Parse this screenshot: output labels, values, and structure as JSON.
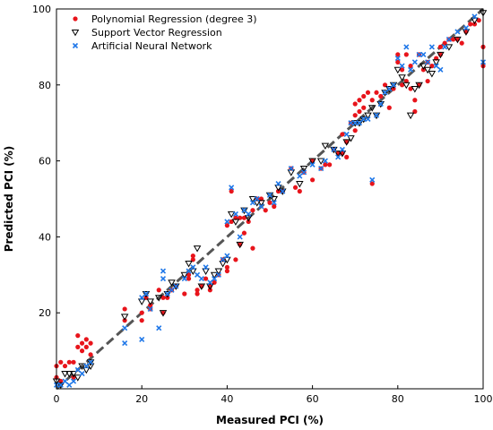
{
  "chart_data": {
    "type": "scatter",
    "title": "",
    "xlabel": "Measured PCI (%)",
    "ylabel": "Predicted PCI (%)",
    "xlim": [
      0,
      100
    ],
    "ylim": [
      0,
      100
    ],
    "xticks": [
      0,
      20,
      40,
      60,
      80,
      100
    ],
    "yticks": [
      20,
      40,
      60,
      80,
      100
    ],
    "grid": false,
    "legend_position": "top-left",
    "reference_line": {
      "style": "dashed",
      "color": "#555555",
      "from": [
        0,
        0
      ],
      "to": [
        100,
        100
      ]
    },
    "series": [
      {
        "name": "Polynomial Regression (degree 3)",
        "marker": "circle",
        "color": "#e8141b",
        "points": [
          [
            0,
            3
          ],
          [
            0,
            6
          ],
          [
            1,
            7
          ],
          [
            1,
            2
          ],
          [
            2,
            6
          ],
          [
            3,
            7
          ],
          [
            4,
            7
          ],
          [
            4,
            3
          ],
          [
            5,
            14
          ],
          [
            5,
            11
          ],
          [
            6,
            12
          ],
          [
            6,
            10
          ],
          [
            7,
            13
          ],
          [
            7,
            11
          ],
          [
            8,
            12
          ],
          [
            8,
            9
          ],
          [
            16,
            18
          ],
          [
            16,
            21
          ],
          [
            20,
            20
          ],
          [
            20,
            18
          ],
          [
            21,
            24
          ],
          [
            22,
            22
          ],
          [
            22,
            21
          ],
          [
            24,
            26
          ],
          [
            25,
            20
          ],
          [
            25,
            24
          ],
          [
            26,
            24
          ],
          [
            27,
            26
          ],
          [
            28,
            27
          ],
          [
            30,
            25
          ],
          [
            31,
            30
          ],
          [
            31,
            29
          ],
          [
            32,
            34
          ],
          [
            32,
            35
          ],
          [
            33,
            26
          ],
          [
            33,
            25
          ],
          [
            34,
            27
          ],
          [
            35,
            29
          ],
          [
            36,
            26
          ],
          [
            36,
            27
          ],
          [
            37,
            28
          ],
          [
            38,
            30
          ],
          [
            39,
            34
          ],
          [
            40,
            31
          ],
          [
            40,
            32
          ],
          [
            40,
            43
          ],
          [
            41,
            52
          ],
          [
            41,
            44
          ],
          [
            42,
            45
          ],
          [
            42,
            34
          ],
          [
            43,
            45
          ],
          [
            43,
            38
          ],
          [
            44,
            41
          ],
          [
            44,
            45
          ],
          [
            45,
            44
          ],
          [
            46,
            37
          ],
          [
            46,
            47
          ],
          [
            47,
            50
          ],
          [
            48,
            50
          ],
          [
            49,
            47
          ],
          [
            50,
            49
          ],
          [
            51,
            48
          ],
          [
            52,
            52
          ],
          [
            53,
            52
          ],
          [
            55,
            58
          ],
          [
            56,
            53
          ],
          [
            57,
            52
          ],
          [
            58,
            57
          ],
          [
            60,
            60
          ],
          [
            60,
            55
          ],
          [
            62,
            58
          ],
          [
            63,
            59
          ],
          [
            64,
            59
          ],
          [
            65,
            63
          ],
          [
            66,
            62
          ],
          [
            67,
            62
          ],
          [
            67,
            67
          ],
          [
            68,
            61
          ],
          [
            68,
            65
          ],
          [
            69,
            70
          ],
          [
            70,
            68
          ],
          [
            70,
            72
          ],
          [
            70,
            75
          ],
          [
            71,
            76
          ],
          [
            71,
            73
          ],
          [
            72,
            77
          ],
          [
            72,
            74
          ],
          [
            73,
            78
          ],
          [
            74,
            76
          ],
          [
            74,
            54
          ],
          [
            75,
            78
          ],
          [
            76,
            77
          ],
          [
            77,
            80
          ],
          [
            78,
            74
          ],
          [
            79,
            79
          ],
          [
            80,
            86
          ],
          [
            80,
            88
          ],
          [
            81,
            84
          ],
          [
            81,
            80
          ],
          [
            82,
            88
          ],
          [
            82,
            81
          ],
          [
            83,
            79
          ],
          [
            83,
            85
          ],
          [
            84,
            76
          ],
          [
            84,
            73
          ],
          [
            85,
            80
          ],
          [
            85,
            88
          ],
          [
            86,
            84
          ],
          [
            87,
            81
          ],
          [
            87,
            86
          ],
          [
            88,
            85
          ],
          [
            89,
            87
          ],
          [
            90,
            88
          ],
          [
            90,
            90
          ],
          [
            91,
            91
          ],
          [
            92,
            92
          ],
          [
            93,
            92
          ],
          [
            94,
            92
          ],
          [
            95,
            91
          ],
          [
            96,
            94
          ],
          [
            97,
            96
          ],
          [
            98,
            96
          ],
          [
            99,
            97
          ],
          [
            100,
            85
          ],
          [
            100,
            90
          ]
        ]
      },
      {
        "name": "Support Vector Regression",
        "marker": "triangle-down",
        "color": "#000000",
        "points": [
          [
            0,
            2
          ],
          [
            1,
            1
          ],
          [
            2,
            4
          ],
          [
            3,
            4
          ],
          [
            4,
            4
          ],
          [
            5,
            3
          ],
          [
            6,
            6
          ],
          [
            7,
            5
          ],
          [
            8,
            6
          ],
          [
            8,
            7
          ],
          [
            16,
            19
          ],
          [
            20,
            23
          ],
          [
            21,
            25
          ],
          [
            22,
            23
          ],
          [
            24,
            24
          ],
          [
            25,
            20
          ],
          [
            26,
            25
          ],
          [
            27,
            28
          ],
          [
            28,
            27
          ],
          [
            30,
            30
          ],
          [
            31,
            33
          ],
          [
            32,
            31
          ],
          [
            33,
            37
          ],
          [
            34,
            27
          ],
          [
            35,
            31
          ],
          [
            36,
            27
          ],
          [
            37,
            30
          ],
          [
            38,
            31
          ],
          [
            39,
            33
          ],
          [
            40,
            34
          ],
          [
            41,
            46
          ],
          [
            42,
            44
          ],
          [
            43,
            38
          ],
          [
            44,
            47
          ],
          [
            45,
            45
          ],
          [
            46,
            50
          ],
          [
            47,
            49
          ],
          [
            48,
            49
          ],
          [
            50,
            51
          ],
          [
            51,
            50
          ],
          [
            52,
            53
          ],
          [
            53,
            52
          ],
          [
            55,
            57
          ],
          [
            57,
            54
          ],
          [
            58,
            58
          ],
          [
            60,
            60
          ],
          [
            62,
            60
          ],
          [
            63,
            64
          ],
          [
            65,
            63
          ],
          [
            66,
            62
          ],
          [
            67,
            62
          ],
          [
            68,
            65
          ],
          [
            69,
            66
          ],
          [
            70,
            70
          ],
          [
            71,
            70
          ],
          [
            72,
            71
          ],
          [
            73,
            72
          ],
          [
            74,
            74
          ],
          [
            75,
            72
          ],
          [
            76,
            75
          ],
          [
            77,
            78
          ],
          [
            78,
            79
          ],
          [
            79,
            80
          ],
          [
            80,
            84
          ],
          [
            81,
            82
          ],
          [
            82,
            80
          ],
          [
            83,
            72
          ],
          [
            84,
            79
          ],
          [
            85,
            80
          ],
          [
            86,
            85
          ],
          [
            87,
            84
          ],
          [
            88,
            83
          ],
          [
            89,
            86
          ],
          [
            90,
            88
          ],
          [
            92,
            90
          ],
          [
            94,
            92
          ],
          [
            96,
            94
          ],
          [
            98,
            97
          ],
          [
            100,
            99
          ]
        ]
      },
      {
        "name": "Artificial Neural Network",
        "marker": "x",
        "color": "#1f77e8",
        "points": [
          [
            0,
            1
          ],
          [
            1,
            1
          ],
          [
            2,
            2
          ],
          [
            3,
            1
          ],
          [
            4,
            2
          ],
          [
            5,
            5
          ],
          [
            6,
            4
          ],
          [
            7,
            6
          ],
          [
            8,
            7
          ],
          [
            16,
            12
          ],
          [
            16,
            16
          ],
          [
            20,
            13
          ],
          [
            20,
            24
          ],
          [
            21,
            25
          ],
          [
            22,
            21
          ],
          [
            24,
            16
          ],
          [
            25,
            29
          ],
          [
            25,
            31
          ],
          [
            26,
            25
          ],
          [
            27,
            26
          ],
          [
            28,
            27
          ],
          [
            30,
            29
          ],
          [
            31,
            31
          ],
          [
            32,
            32
          ],
          [
            33,
            30
          ],
          [
            34,
            29
          ],
          [
            35,
            32
          ],
          [
            36,
            28
          ],
          [
            37,
            29
          ],
          [
            38,
            30
          ],
          [
            39,
            34
          ],
          [
            40,
            35
          ],
          [
            40,
            44
          ],
          [
            41,
            53
          ],
          [
            42,
            46
          ],
          [
            43,
            40
          ],
          [
            44,
            47
          ],
          [
            45,
            46
          ],
          [
            46,
            49
          ],
          [
            47,
            50
          ],
          [
            48,
            48
          ],
          [
            50,
            51
          ],
          [
            51,
            49
          ],
          [
            52,
            54
          ],
          [
            53,
            52
          ],
          [
            55,
            58
          ],
          [
            57,
            56
          ],
          [
            58,
            57
          ],
          [
            60,
            59
          ],
          [
            62,
            58
          ],
          [
            63,
            60
          ],
          [
            65,
            63
          ],
          [
            66,
            61
          ],
          [
            67,
            63
          ],
          [
            68,
            67
          ],
          [
            69,
            70
          ],
          [
            70,
            70
          ],
          [
            71,
            70
          ],
          [
            72,
            71
          ],
          [
            73,
            71
          ],
          [
            74,
            55
          ],
          [
            75,
            72
          ],
          [
            76,
            75
          ],
          [
            77,
            78
          ],
          [
            78,
            79
          ],
          [
            79,
            80
          ],
          [
            80,
            87
          ],
          [
            81,
            85
          ],
          [
            82,
            90
          ],
          [
            83,
            84
          ],
          [
            84,
            86
          ],
          [
            85,
            88
          ],
          [
            86,
            88
          ],
          [
            87,
            86
          ],
          [
            88,
            90
          ],
          [
            89,
            85
          ],
          [
            90,
            84
          ],
          [
            91,
            90
          ],
          [
            92,
            92
          ],
          [
            94,
            94
          ],
          [
            96,
            95
          ],
          [
            98,
            98
          ],
          [
            100,
            86
          ]
        ]
      }
    ]
  }
}
